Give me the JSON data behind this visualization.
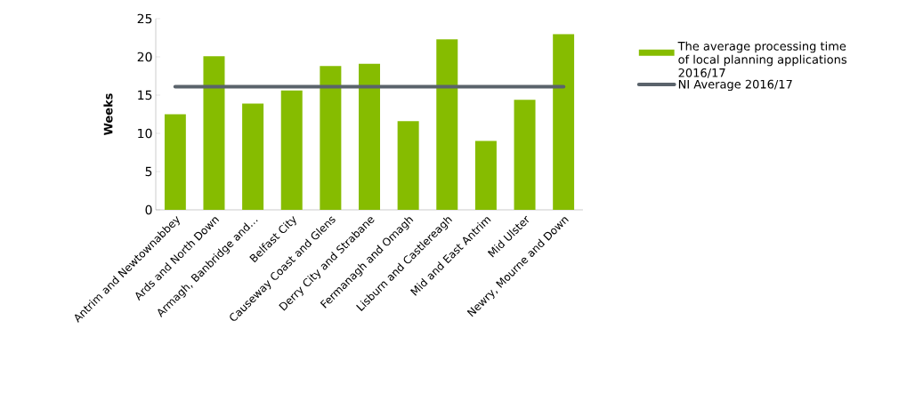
{
  "chart_data": {
    "type": "bar",
    "ylabel": "Weeks",
    "categories": [
      "Antrim and Newtownabbey",
      "Ards and North Down",
      "Armagh, Banbridge and…",
      "Belfast City",
      "Causeway Coast and Glens",
      "Derry City and Strabane",
      "Fermanagh and Omagh",
      "Lisburn and Castlereagh",
      "Mid and East Antrim",
      "Mid Ulster",
      "Newry, Mourne and Down"
    ],
    "series": [
      {
        "name": "The average processing time of local planning applications 2016/17",
        "color": "#86bc00",
        "values": [
          12.5,
          20.1,
          13.9,
          15.6,
          18.8,
          19.1,
          11.6,
          22.3,
          9.0,
          14.4,
          23.0
        ]
      },
      {
        "name": "NI Average 2016/17",
        "type": "line",
        "color": "#5a636b",
        "values": [
          16.1,
          16.1,
          16.1,
          16.1,
          16.1,
          16.1,
          16.1,
          16.1,
          16.1,
          16.1,
          16.1
        ]
      }
    ],
    "ylim": [
      0,
      25
    ],
    "yticks": [
      0,
      5,
      10,
      15,
      20,
      25
    ],
    "grid": false,
    "legend": "right"
  }
}
